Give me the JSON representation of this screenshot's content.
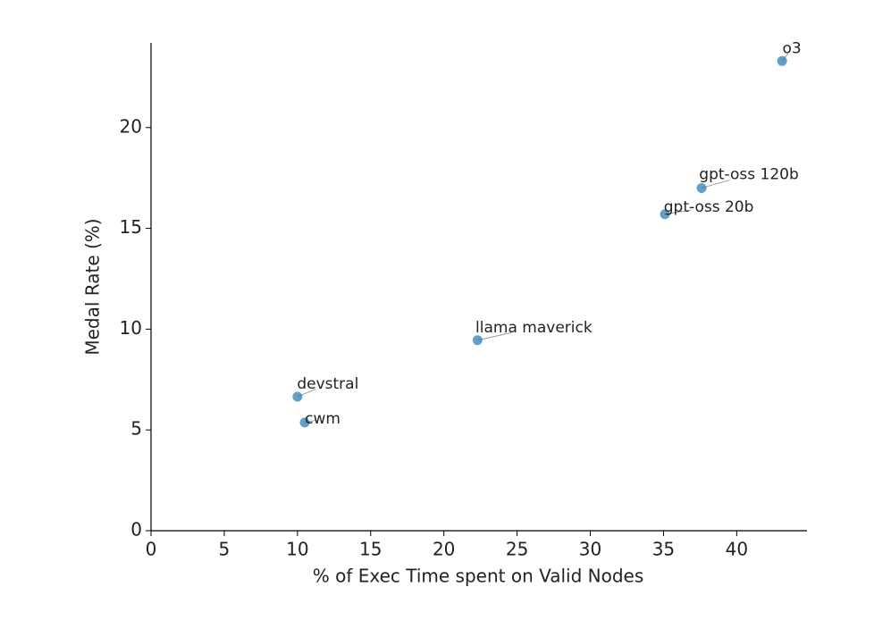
{
  "chart_data": {
    "type": "scatter",
    "x_label": "% of Exec Time spent on Valid Nodes",
    "y_label": "Medal Rate (%)",
    "labels": [
      "o3",
      "gpt-oss 120b",
      "gpt-oss 20b",
      "llama maverick",
      "devstral",
      "cwm"
    ],
    "x": [
      43.1,
      37.6,
      35.1,
      22.3,
      10.0,
      10.5
    ],
    "values": [
      23.3,
      17.0,
      15.7,
      9.45,
      6.65,
      5.37
    ],
    "color": "#1f77b4",
    "xlim": [
      0,
      44.8
    ],
    "xticks": [
      0,
      5,
      10,
      15,
      20,
      25,
      30,
      35,
      40
    ],
    "ylim": [
      0,
      24.2
    ],
    "yticks": [
      0,
      5,
      10,
      15,
      20
    ]
  }
}
